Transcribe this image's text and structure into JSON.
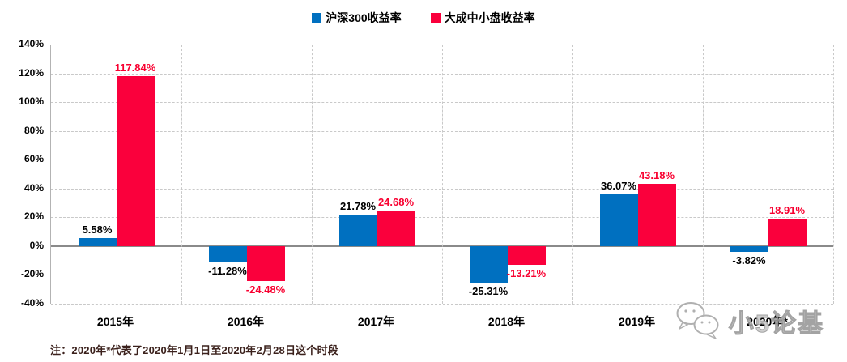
{
  "chart_data": {
    "type": "bar",
    "title": "",
    "categories": [
      "2015年",
      "2016年",
      "2017年",
      "2018年",
      "2019年",
      "2020年*"
    ],
    "series": [
      {
        "name": "沪深300收益率",
        "color": "#0070C0",
        "label_color": "#000000",
        "values": [
          5.58,
          -11.28,
          21.78,
          -25.31,
          36.07,
          -3.82
        ]
      },
      {
        "name": "大成中小盘收益率",
        "color": "#FA003C",
        "label_color": "#F80030",
        "values": [
          117.84,
          -24.48,
          24.68,
          -13.21,
          43.18,
          18.91
        ]
      }
    ],
    "value_label_suffix": "%",
    "ylim": [
      -40,
      140
    ],
    "yticks": [
      {
        "v": 140,
        "label": "140%"
      },
      {
        "v": 120,
        "label": "120%"
      },
      {
        "v": 100,
        "label": "100%"
      },
      {
        "v": 80,
        "label": "80%"
      },
      {
        "v": 60,
        "label": "60%"
      },
      {
        "v": 40,
        "label": "40%"
      },
      {
        "v": 20,
        "label": "20%"
      },
      {
        "v": 0,
        "label": "0%"
      },
      {
        "v": -20,
        "label": "-20%"
      },
      {
        "v": -40,
        "label": "-40%"
      }
    ],
    "grid": {
      "horizontal": "dashed",
      "vertical_category_separators": true
    },
    "legend_position": "top-center"
  },
  "footnote": {
    "text": "注：2020年*代表了2020年1月1日至2020年2月28日这个时段",
    "color": "#3B211C"
  },
  "watermark": {
    "text": "小5论基",
    "icon": "wechat-chat-bubbles-icon"
  }
}
